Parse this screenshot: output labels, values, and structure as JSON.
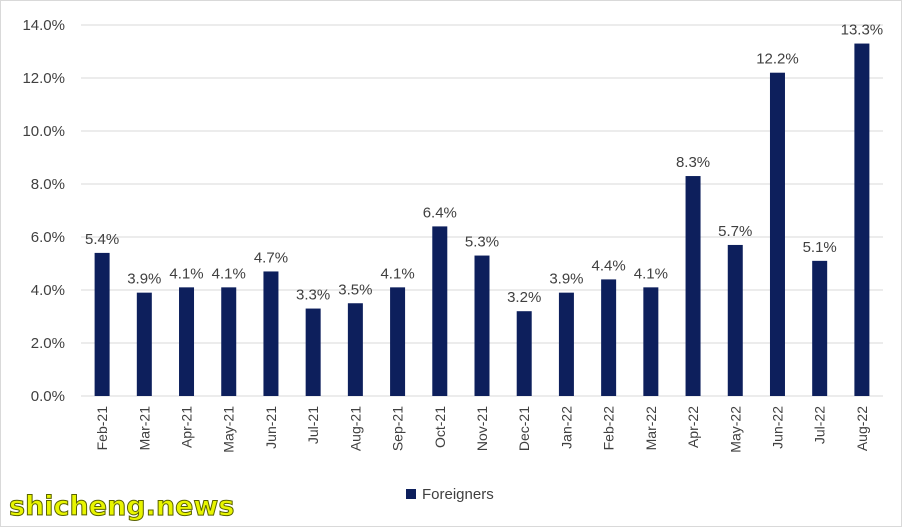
{
  "chart_data": {
    "type": "bar",
    "categories": [
      "Feb-21",
      "Mar-21",
      "Apr-21",
      "May-21",
      "Jun-21",
      "Jul-21",
      "Aug-21",
      "Sep-21",
      "Oct-21",
      "Nov-21",
      "Dec-21",
      "Jan-22",
      "Feb-22",
      "Mar-22",
      "Apr-22",
      "May-22",
      "Jun-22",
      "Jul-22",
      "Aug-22"
    ],
    "series": [
      {
        "name": "Foreigners",
        "values": [
          5.4,
          3.9,
          4.1,
          4.1,
          4.7,
          3.3,
          3.5,
          4.1,
          6.4,
          5.3,
          3.2,
          3.9,
          4.4,
          4.1,
          8.3,
          5.7,
          12.2,
          5.1,
          13.3
        ],
        "labels": [
          "5.4%",
          "3.9%",
          "4.1%",
          "4.1%",
          "4.7%",
          "3.3%",
          "3.5%",
          "4.1%",
          "6.4%",
          "5.3%",
          "3.2%",
          "3.9%",
          "4.4%",
          "4.1%",
          "8.3%",
          "5.7%",
          "12.2%",
          "5.1%",
          "13.3%"
        ],
        "color": "#0d1f5c"
      }
    ],
    "yticks": [
      "0.0%",
      "2.0%",
      "4.0%",
      "6.0%",
      "8.0%",
      "10.0%",
      "12.0%",
      "14.0%"
    ],
    "ylim": [
      0,
      14
    ],
    "grid": true,
    "legend_position": "bottom",
    "title": "",
    "xlabel": "",
    "ylabel": ""
  },
  "colors": {
    "bar": "#0d1f5c",
    "grid": "#d9d9d9",
    "text": "#404040"
  },
  "watermark": "shicheng.news"
}
